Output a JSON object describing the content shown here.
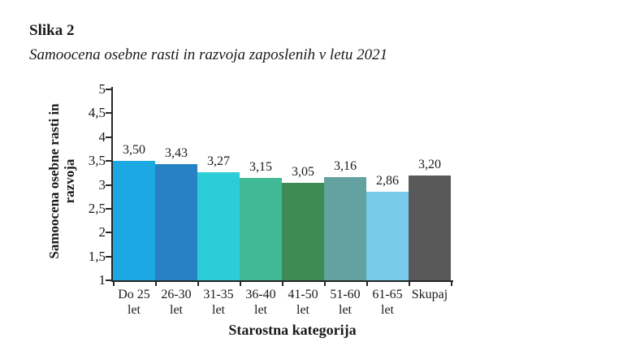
{
  "figure": {
    "label": "Slika 2",
    "caption": "Samoocena osebne rasti in razvoja zaposlenih v letu 2021"
  },
  "chart_data": {
    "type": "bar",
    "title": "Samoocena osebne rasti in razvoja zaposlenih v letu 2021",
    "categories": [
      "Do 25 let",
      "26-30 let",
      "31-35 let",
      "36-40 let",
      "41-50 let",
      "51-60 let",
      "61-65 let",
      "Skupaj"
    ],
    "category_lines": [
      [
        "Do 25",
        "let"
      ],
      [
        "26-30",
        "let"
      ],
      [
        "31-35",
        "let"
      ],
      [
        "36-40",
        "let"
      ],
      [
        "41-50",
        "let"
      ],
      [
        "51-60",
        "let"
      ],
      [
        "61-65",
        "let"
      ],
      [
        "Skupaj"
      ]
    ],
    "values": [
      3.5,
      3.43,
      3.27,
      3.15,
      3.05,
      3.16,
      2.86,
      3.2
    ],
    "value_labels": [
      "3,50",
      "3,43",
      "3,27",
      "3,15",
      "3,05",
      "3,16",
      "2,86",
      "3,20"
    ],
    "xlabel": "Starostna kategorija",
    "ylabel": "Samoocena osebne rasti in razvoja",
    "ylabel_lines": [
      "Samoocena osebne rasti in",
      "razvoja"
    ],
    "ylim": [
      1,
      5
    ],
    "yticks": [
      5,
      4.5,
      4,
      3.5,
      3,
      2.5,
      2,
      1.5,
      1
    ],
    "ytick_labels": [
      "5",
      "4,5",
      "4",
      "3,5",
      "3",
      "2,5",
      "2",
      "1,5",
      "1"
    ],
    "bar_colors": [
      "#1ca9e3",
      "#2781c4",
      "#2bced6",
      "#41b896",
      "#3e8b55",
      "#63a2a0",
      "#79cbec",
      "#595959"
    ],
    "axis_color": "#262626",
    "gridlines": false,
    "legend": "none"
  }
}
